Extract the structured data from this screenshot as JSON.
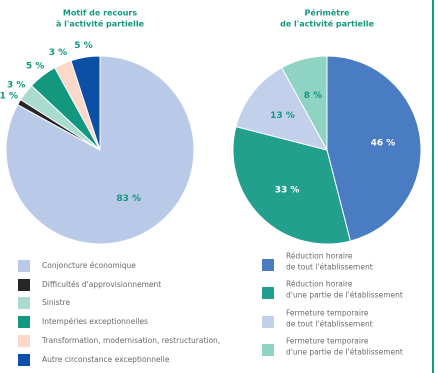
{
  "chart_data": [
    {
      "type": "pie",
      "title": [
        "Motif de recours",
        "à l'activité partielle"
      ],
      "categories": [
        [
          "Conjoncture économique"
        ],
        [
          "Difficultés d'approvisionnement"
        ],
        [
          "Sinistre"
        ],
        [
          "Intempéries exceptionnelles"
        ],
        [
          "Transformation, modernisation, restructuration,"
        ],
        [
          "Autre circonstance exceptionnelle"
        ]
      ],
      "values": [
        83,
        1,
        3,
        5,
        3,
        5
      ],
      "value_labels": [
        "83 %",
        "1 %",
        "3 %",
        "5 %",
        "3 %",
        "5 %"
      ],
      "colors": [
        "#b9c9e8",
        "#262626",
        "#a9dccf",
        "#13987f",
        "#fcd8cb",
        "#0b4fa6"
      ]
    },
    {
      "type": "pie",
      "title": [
        "Périmètre",
        "de l'activité partielle"
      ],
      "categories": [
        [
          "Réduction horaire",
          "de tout l'établissement"
        ],
        [
          "Réduction horaire",
          "d'une partie de l'établissement"
        ],
        [
          "Fermeture temporaire",
          "de tout l'établissement"
        ],
        [
          "Fermeture temporaire",
          "d'une partie de l'établissement"
        ]
      ],
      "values": [
        46,
        33,
        13,
        8
      ],
      "value_labels": [
        "46 %",
        "33 %",
        "13 %",
        "8 %"
      ],
      "colors": [
        "#4a7cc4",
        "#22a08d",
        "#c3d0ec",
        "#8fd3c3"
      ]
    }
  ]
}
